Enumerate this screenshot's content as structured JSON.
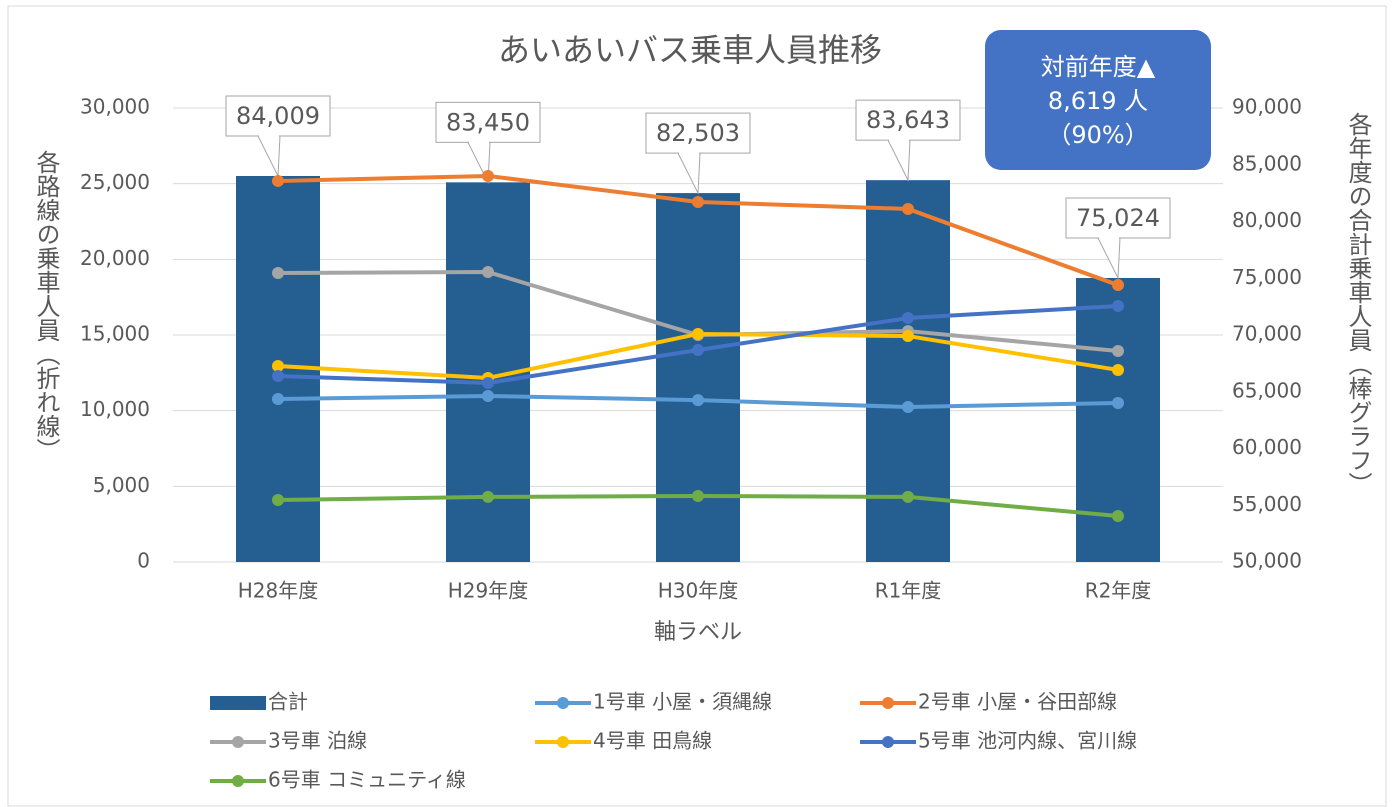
{
  "chart_data": {
    "type": "bar",
    "title": "あいあいバス乗車人員推移",
    "categories": [
      "H28年度",
      "H29年度",
      "H30年度",
      "R1年度",
      "R2年度"
    ],
    "x_axis_label": "軸ラベル",
    "y_axis_label": "各路線の乗車人員（折れ線）",
    "y2_axis_label": "各年度の合計乗車人員（棒グラフ）",
    "annotation": [
      "対前年度▲",
      "8,619 人",
      "（90%）"
    ],
    "annotation_color": "#4472c4",
    "ylim": [
      0,
      30000
    ],
    "yticks": [
      0,
      {
        "value": 5000,
        "label": "5,000"
      },
      {
        "value": 10000,
        "label": "10,000"
      },
      {
        "value": 15000,
        "label": "15,000"
      },
      {
        "value": 20000,
        "label": "20,000"
      },
      {
        "value": 25000,
        "label": "25,000"
      },
      {
        "value": 30000,
        "label": "30,000"
      }
    ],
    "y2lim": [
      50000,
      90000
    ],
    "y2ticks": [
      {
        "value": 50000,
        "label": "50,000"
      },
      {
        "value": 55000,
        "label": "55,000"
      },
      {
        "value": 60000,
        "label": "60,000"
      },
      {
        "value": 65000,
        "label": "65,000"
      },
      {
        "value": 70000,
        "label": "70,000"
      },
      {
        "value": 75000,
        "label": "75,000"
      },
      {
        "value": 80000,
        "label": "80,000"
      },
      {
        "value": 85000,
        "label": "85,000"
      },
      {
        "value": 90000,
        "label": "90,000"
      }
    ],
    "grid": true,
    "legend": "bottom",
    "series": [
      {
        "name": "合計",
        "type": "bar",
        "axis": "y2",
        "color": "#255e91",
        "values": [
          84009,
          83450,
          82503,
          83643,
          75024
        ],
        "value_labels": [
          "84,009",
          "83,450",
          "82,503",
          "83,643",
          "75,024"
        ]
      },
      {
        "name": "1号車 小屋・須縄線",
        "type": "line",
        "color": "#5b9bd5",
        "values": [
          10770,
          10970,
          10700,
          10240,
          10510
        ]
      },
      {
        "name": "2号車 小屋・谷田部線",
        "type": "line",
        "color": "#ed7d31",
        "values": [
          25180,
          25510,
          23790,
          23330,
          18300
        ]
      },
      {
        "name": "3号車 泊線",
        "type": "line",
        "color": "#a5a5a5",
        "values": [
          19100,
          19160,
          15000,
          15260,
          13940
        ]
      },
      {
        "name": "4号車 田鳥線",
        "type": "line",
        "color": "#ffc000",
        "values": [
          12950,
          12160,
          15070,
          14930,
          12690
        ]
      },
      {
        "name": "5号車 池河内線、宮川線",
        "type": "line",
        "color": "#4472c4",
        "values": [
          12290,
          11830,
          14010,
          16120,
          16920
        ]
      },
      {
        "name": "6号車 コミュニティ線",
        "type": "line",
        "color": "#70ad47",
        "values": [
          4100,
          4300,
          4360,
          4300,
          3040
        ]
      }
    ]
  }
}
